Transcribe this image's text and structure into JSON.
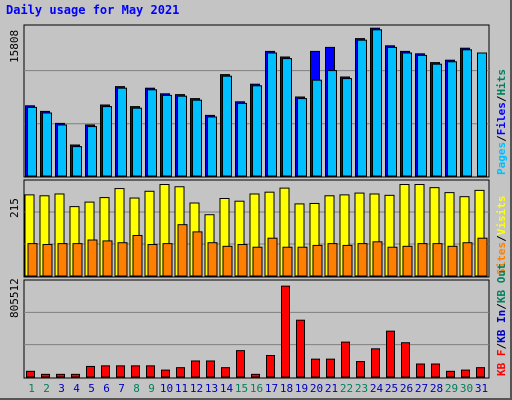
{
  "title": "Daily usage for May 2021",
  "colors": {
    "hits": "#00805c",
    "files": "#0000ff",
    "pages": "#00c0ff",
    "visits": "#ffff00",
    "sites": "#ff8000",
    "kbytes": "#ff0000",
    "kb_in": "#0000c0",
    "kb_out": "#00805c",
    "day_normal": "#0000c0",
    "day_weekend": "#00805c",
    "panel_bg": "#c4c4c4"
  },
  "chart_data": [
    {
      "type": "bar",
      "panel": "top",
      "max_label": "15808",
      "legend": [
        "Pages",
        "/",
        "Files",
        "/",
        "Hits"
      ],
      "categories": [
        "1",
        "2",
        "3",
        "4",
        "5",
        "6",
        "7",
        "8",
        "9",
        "10",
        "11",
        "12",
        "13",
        "14",
        "15",
        "16",
        "17",
        "18",
        "19",
        "20",
        "21",
        "22",
        "23",
        "24",
        "25",
        "26",
        "27",
        "28",
        "29",
        "30",
        "31"
      ],
      "series": [
        {
          "name": "Files",
          "values": [
            8900,
            8200,
            6700,
            4000,
            6500,
            9000,
            11300,
            8800,
            11100,
            10400,
            10300,
            9800,
            7700,
            12800,
            9400,
            11600,
            15700,
            15000,
            10000,
            15700,
            16200,
            12500,
            17300,
            18600,
            16400,
            15700,
            15400,
            14300,
            14600,
            16100,
            0
          ]
        },
        {
          "name": "Pages",
          "values": [
            8700,
            8000,
            6500,
            3800,
            6300,
            8800,
            11100,
            8600,
            10900,
            10200,
            10100,
            9600,
            7500,
            12600,
            9200,
            11400,
            15500,
            14800,
            9800,
            12100,
            13300,
            12300,
            17100,
            18400,
            16200,
            15500,
            15200,
            14100,
            14400,
            15900,
            15500
          ]
        }
      ]
    },
    {
      "type": "bar",
      "panel": "middle",
      "max_label": "215",
      "legend": [
        "Sites",
        "/",
        "Visits"
      ],
      "categories": [
        "1",
        "2",
        "3",
        "4",
        "5",
        "6",
        "7",
        "8",
        "9",
        "10",
        "11",
        "12",
        "13",
        "14",
        "15",
        "16",
        "17",
        "18",
        "19",
        "20",
        "21",
        "22",
        "23",
        "24",
        "25",
        "26",
        "27",
        "28",
        "29",
        "30",
        "31"
      ],
      "series": [
        {
          "name": "Visits",
          "values": [
            182,
            180,
            184,
            156,
            166,
            176,
            196,
            175,
            190,
            205,
            200,
            164,
            138,
            174,
            168,
            184,
            188,
            197,
            162,
            163,
            180,
            182,
            186,
            184,
            181,
            205,
            205,
            198,
            187,
            178,
            192
          ]
        },
        {
          "name": "Sites",
          "values": [
            74,
            72,
            74,
            74,
            82,
            80,
            76,
            92,
            72,
            74,
            116,
            100,
            76,
            68,
            72,
            66,
            86,
            66,
            66,
            70,
            74,
            70,
            74,
            78,
            66,
            68,
            74,
            74,
            68,
            76,
            86
          ]
        }
      ]
    },
    {
      "type": "bar",
      "panel": "bottom",
      "max_label": "805512",
      "legend": [
        "KB F",
        "/",
        "KB In",
        "/",
        "KB Out"
      ],
      "categories": [
        "1",
        "2",
        "3",
        "4",
        "5",
        "6",
        "7",
        "8",
        "9",
        "10",
        "11",
        "12",
        "13",
        "14",
        "15",
        "16",
        "17",
        "18",
        "19",
        "20",
        "21",
        "22",
        "23",
        "24",
        "25",
        "26",
        "27",
        "28",
        "29",
        "30",
        "31"
      ],
      "series": [
        {
          "name": "KB F",
          "values": [
            55000,
            30000,
            30000,
            30000,
            95000,
            100000,
            100000,
            100000,
            100000,
            65000,
            85000,
            140000,
            140000,
            85000,
            225000,
            30000,
            185000,
            755000,
            475000,
            155000,
            155000,
            295000,
            135000,
            240000,
            385000,
            290000,
            115000,
            115000,
            55000,
            65000,
            85000
          ]
        }
      ]
    }
  ],
  "x_days": [
    {
      "label": "1",
      "weekend": true
    },
    {
      "label": "2",
      "weekend": true
    },
    {
      "label": "3",
      "weekend": false
    },
    {
      "label": "4",
      "weekend": false
    },
    {
      "label": "5",
      "weekend": false
    },
    {
      "label": "6",
      "weekend": false
    },
    {
      "label": "7",
      "weekend": false
    },
    {
      "label": "8",
      "weekend": true
    },
    {
      "label": "9",
      "weekend": true
    },
    {
      "label": "10",
      "weekend": false
    },
    {
      "label": "11",
      "weekend": false
    },
    {
      "label": "12",
      "weekend": false
    },
    {
      "label": "13",
      "weekend": false
    },
    {
      "label": "14",
      "weekend": false
    },
    {
      "label": "15",
      "weekend": true
    },
    {
      "label": "16",
      "weekend": true
    },
    {
      "label": "17",
      "weekend": false
    },
    {
      "label": "18",
      "weekend": false
    },
    {
      "label": "19",
      "weekend": false
    },
    {
      "label": "20",
      "weekend": false
    },
    {
      "label": "21",
      "weekend": false
    },
    {
      "label": "22",
      "weekend": true
    },
    {
      "label": "23",
      "weekend": true
    },
    {
      "label": "24",
      "weekend": false
    },
    {
      "label": "25",
      "weekend": false
    },
    {
      "label": "26",
      "weekend": false
    },
    {
      "label": "27",
      "weekend": false
    },
    {
      "label": "28",
      "weekend": false
    },
    {
      "label": "29",
      "weekend": true
    },
    {
      "label": "30",
      "weekend": true
    },
    {
      "label": "31",
      "weekend": false
    }
  ]
}
